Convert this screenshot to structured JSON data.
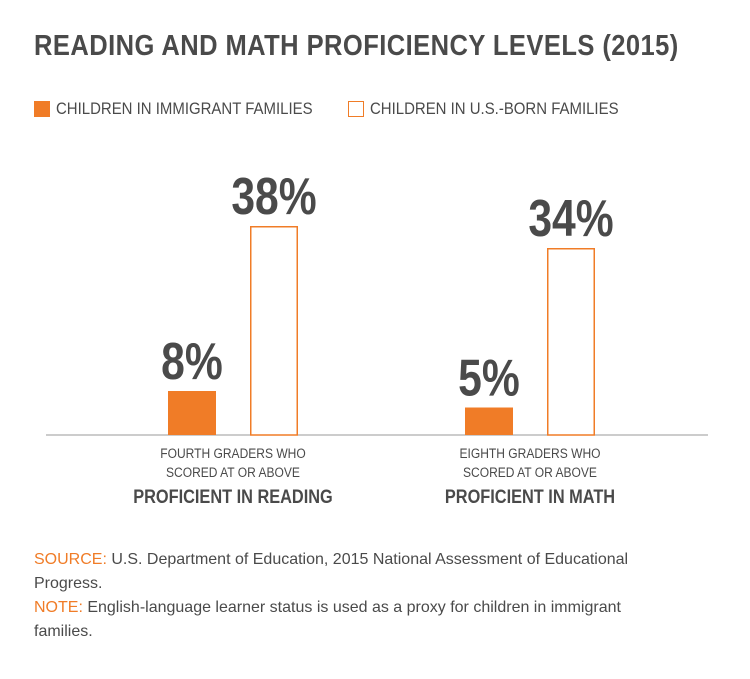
{
  "title": "READING AND MATH PROFICIENCY LEVELS (2015)",
  "legend": [
    {
      "label": "CHILDREN IN IMMIGRANT FAMILIES",
      "style": "filled",
      "color": "#f07c27"
    },
    {
      "label": "CHILDREN IN U.S.-BORN FAMILIES",
      "style": "outline",
      "color": "#f07c27"
    }
  ],
  "colors": {
    "accent": "#f07c27",
    "text": "#4a4a4a",
    "axis": "#9a9a9a"
  },
  "chart_data": {
    "type": "bar",
    "categories": [
      {
        "line1": "FOURTH GRADERS WHO",
        "line2": "SCORED AT OR ABOVE",
        "line3": "PROFICIENT IN READING"
      },
      {
        "line1": "EIGHTH GRADERS WHO",
        "line2": "SCORED AT OR ABOVE",
        "line3": "PROFICIENT IN MATH"
      }
    ],
    "series": [
      {
        "name": "CHILDREN IN IMMIGRANT FAMILIES",
        "values": [
          8,
          5
        ],
        "labels": [
          "8%",
          "5%"
        ]
      },
      {
        "name": "CHILDREN IN U.S.-BORN FAMILIES",
        "values": [
          38,
          34
        ],
        "labels": [
          "38%",
          "34%"
        ]
      }
    ],
    "ylim": [
      0,
      45
    ],
    "grid": false,
    "legend_position": "top-left"
  },
  "footnotes": {
    "source_key": "SOURCE:",
    "source_text": " U.S. Department of Education, 2015 National Assessment of Educational Progress.",
    "note_key": "NOTE:",
    "note_text": " English-language learner status is used as a proxy for children in immigrant families."
  }
}
